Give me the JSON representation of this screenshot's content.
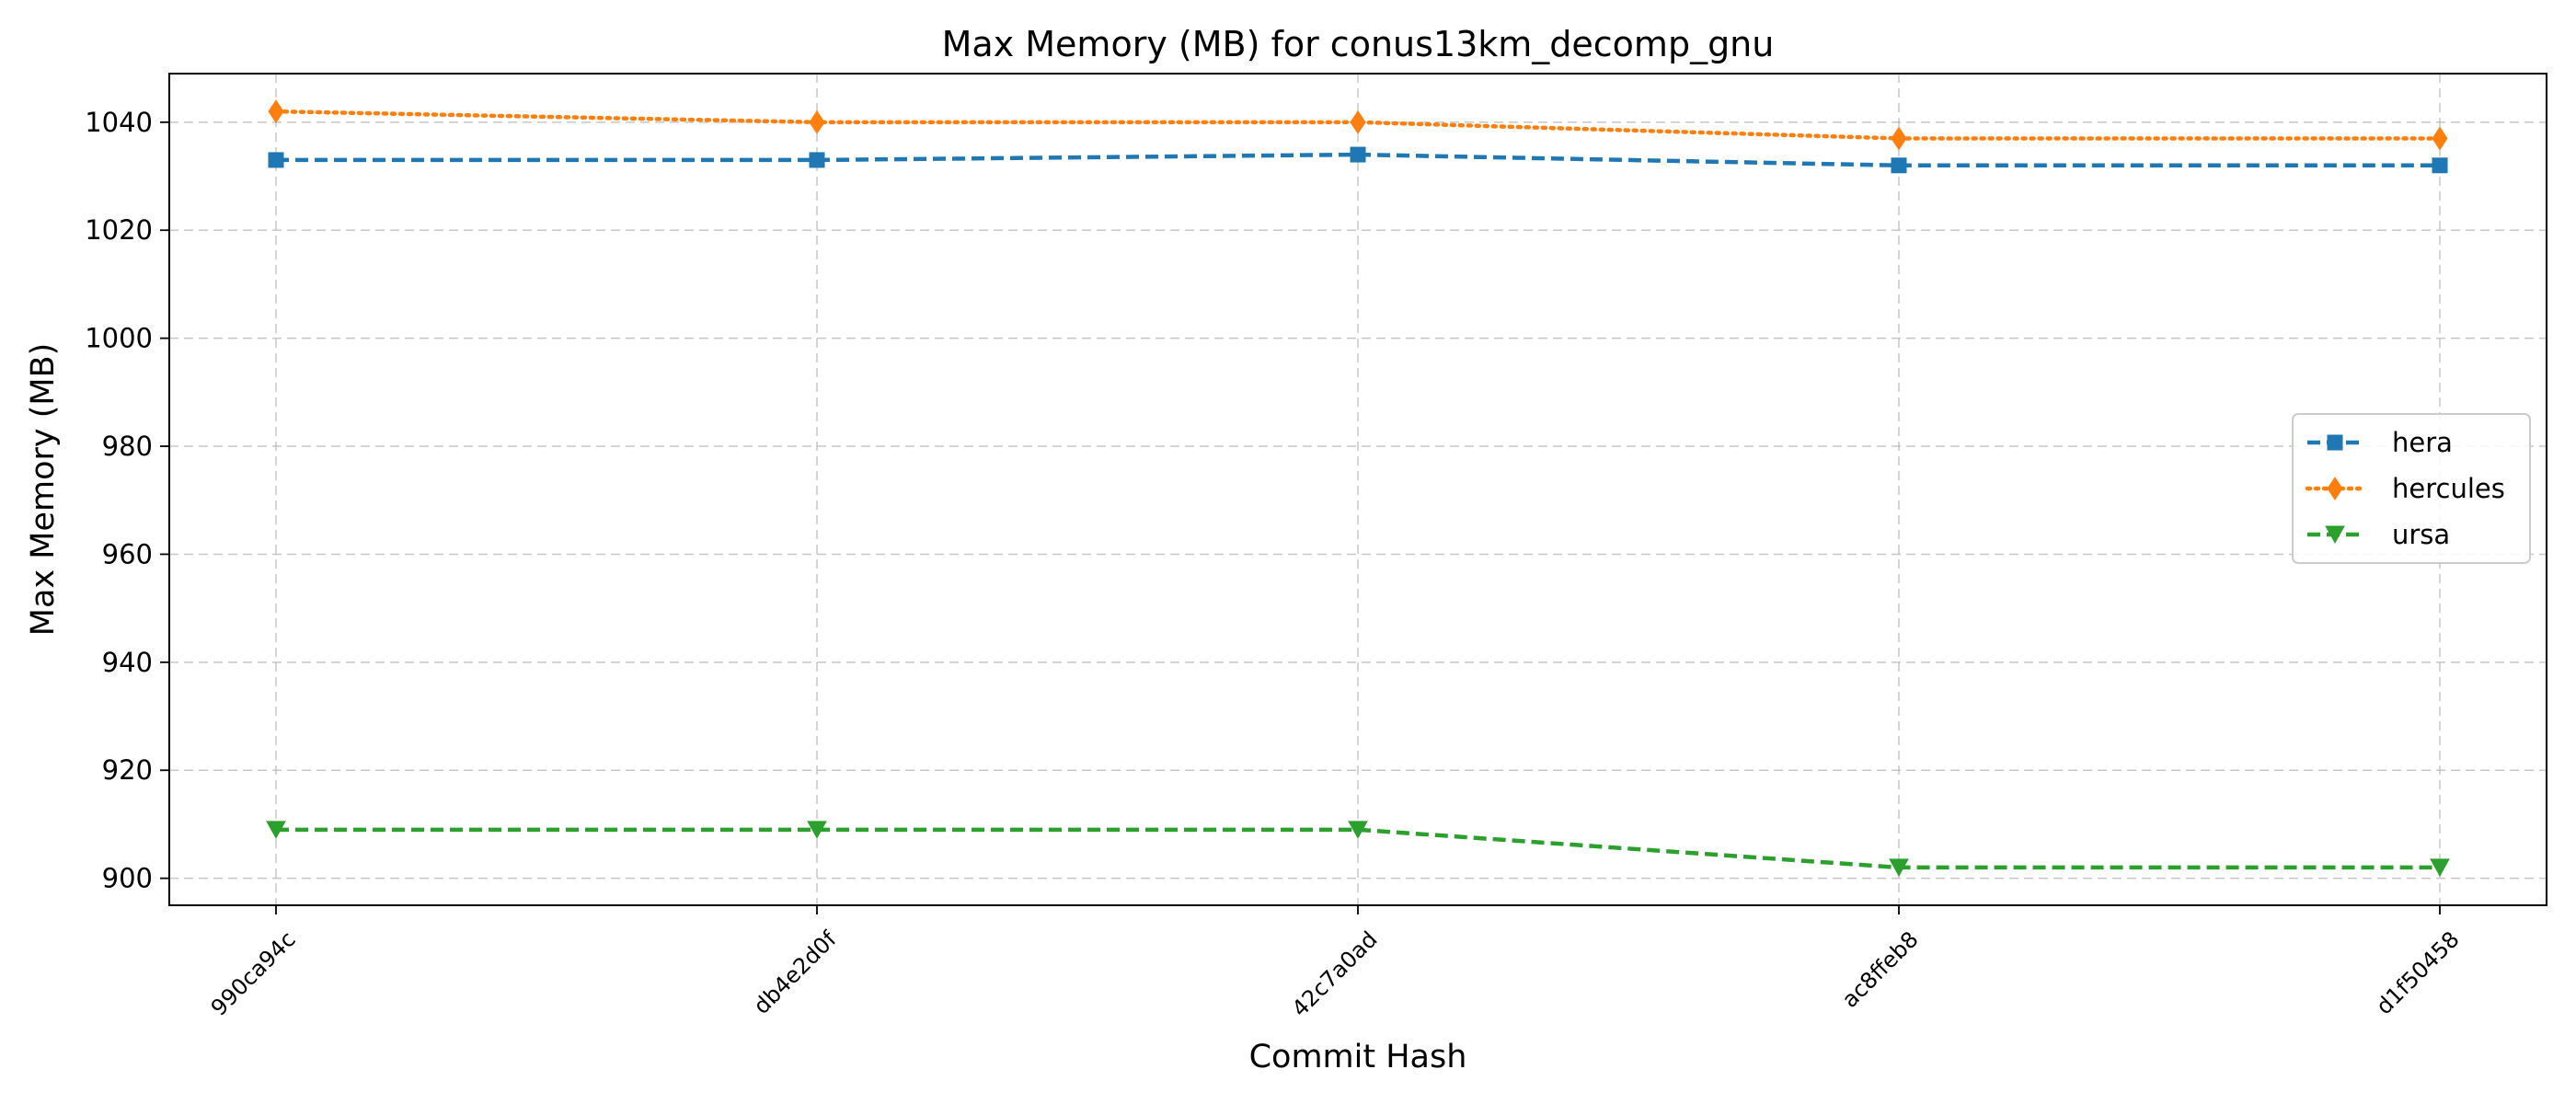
{
  "chart_data": {
    "type": "line",
    "title": "Max Memory (MB) for conus13km_decomp_gnu",
    "xlabel": "Commit Hash",
    "ylabel": "Max Memory (MB)",
    "categories": [
      "990ca94c",
      "db4e2d0f",
      "42c7a0ad",
      "ac8ffeb8",
      "d1f50458"
    ],
    "ylim": [
      895,
      1049
    ],
    "yticks": [
      900,
      920,
      940,
      960,
      980,
      1000,
      1020,
      1040
    ],
    "grid": true,
    "legend_position": "center-right",
    "series": [
      {
        "name": "hera",
        "values": [
          1033,
          1033,
          1034,
          1032,
          1032
        ],
        "color": "#1f77b4",
        "marker": "square",
        "linestyle": "dashed"
      },
      {
        "name": "hercules",
        "values": [
          1042,
          1040,
          1040,
          1037,
          1037
        ],
        "color": "#ff7f0e",
        "marker": "diamond",
        "linestyle": "dotted"
      },
      {
        "name": "ursa",
        "values": [
          909,
          909,
          909,
          902,
          902
        ],
        "color": "#2ca02c",
        "marker": "triangle-down",
        "linestyle": "dashed"
      }
    ]
  }
}
